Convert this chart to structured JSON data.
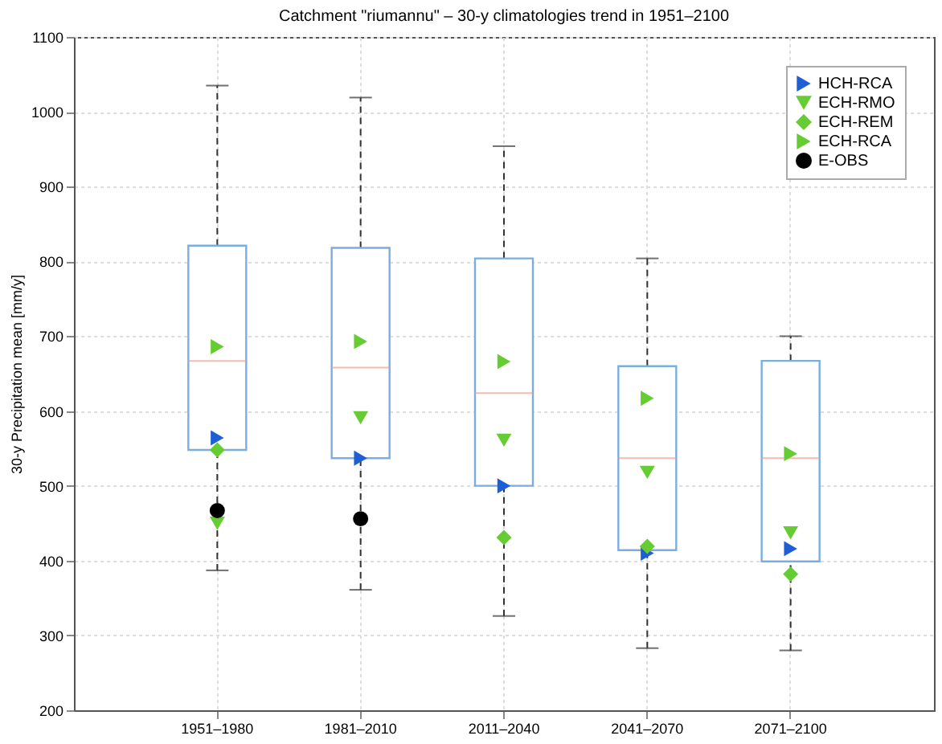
{
  "chart_data": {
    "type": "box",
    "title": "Catchment \"riumannu\" – 30-y climatologies trend in 1951–2100",
    "ylabel": "30-y Precipitation mean [mm/y]",
    "categories": [
      "1951–1980",
      "1981–2010",
      "2011–2040",
      "2041–2070",
      "2071–2100"
    ],
    "boxes": [
      {
        "low": 387,
        "q1": 548,
        "median": 667,
        "q3": 821,
        "high": 1035
      },
      {
        "low": 361,
        "q1": 537,
        "median": 658,
        "q3": 818,
        "high": 1019
      },
      {
        "low": 326,
        "q1": 500,
        "median": 624,
        "q3": 804,
        "high": 954
      },
      {
        "low": 283,
        "q1": 414,
        "median": 537,
        "q3": 660,
        "high": 804
      },
      {
        "low": 280,
        "q1": 399,
        "median": 537,
        "q3": 667,
        "high": 700
      }
    ],
    "series": [
      {
        "name": "HCH-RCA",
        "type": "scatter",
        "marker": "triangle-right",
        "color": "#1f5fd6",
        "x": [
          "1951–1980",
          "1981–2010",
          "2011–2040",
          "2041–2070",
          "2071–2100"
        ],
        "values": [
          564,
          537,
          500,
          410,
          416
        ]
      },
      {
        "name": "ECH-RMO",
        "type": "scatter",
        "marker": "triangle-down",
        "color": "#66cc33",
        "x": [
          "1951–1980",
          "1981–2010",
          "2011–2040",
          "2041–2070",
          "2071–2100"
        ],
        "values": [
          450,
          591,
          561,
          518,
          437
        ]
      },
      {
        "name": "ECH-REM",
        "type": "scatter",
        "marker": "diamond",
        "color": "#66cc33",
        "x": [
          "1951–1980",
          "1981–2010",
          "2011–2040",
          "2041–2070",
          "2071–2100"
        ],
        "values": [
          548,
          null,
          431,
          419,
          382
        ]
      },
      {
        "name": "ECH-RCA",
        "type": "scatter",
        "marker": "triangle-right",
        "color": "#66cc33",
        "x": [
          "1951–1980",
          "1981–2010",
          "2011–2040",
          "2041–2070",
          "2071–2100"
        ],
        "values": [
          686,
          693,
          666,
          617,
          543
        ]
      },
      {
        "name": "E-OBS",
        "type": "scatter",
        "marker": "circle",
        "color": "#000000",
        "x": [
          "1951–1980",
          "1981–2010"
        ],
        "values": [
          467,
          456
        ]
      }
    ],
    "ylim": [
      200,
      1100
    ],
    "yticks": [
      200,
      300,
      400,
      500,
      600,
      700,
      800,
      900,
      1000,
      1100
    ],
    "grid": true,
    "legend": "top right"
  }
}
